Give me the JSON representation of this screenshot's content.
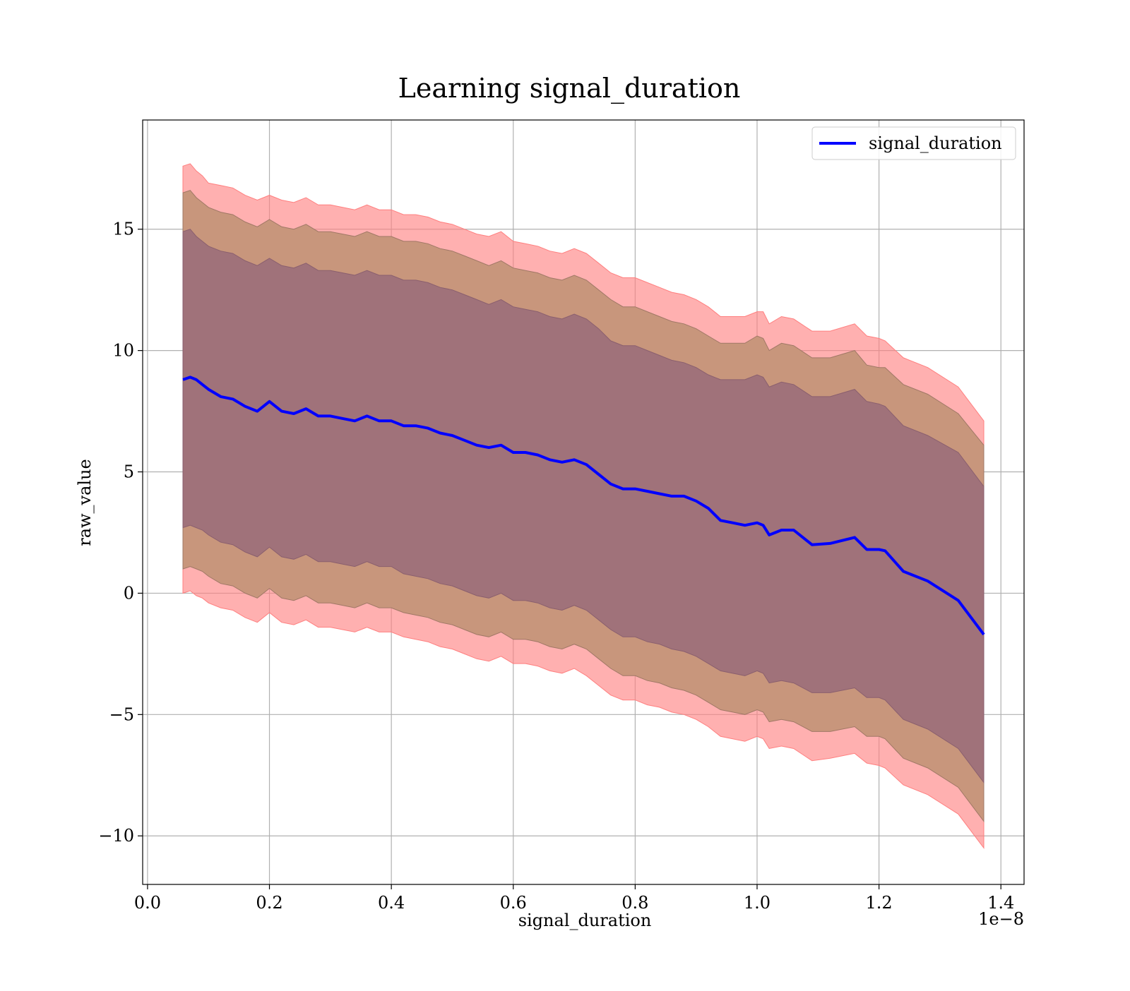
{
  "chart_data": {
    "type": "area",
    "title": "Learning signal_duration",
    "xlabel": "signal_duration",
    "ylabel": "raw_value",
    "x_offset_label": "1e−8",
    "xlim": [
      -0.008,
      1.438
    ],
    "ylim": [
      -12.0,
      19.5
    ],
    "x_tick_values": [
      0.0,
      0.2,
      0.4,
      0.6,
      0.8,
      1.0,
      1.2,
      1.4
    ],
    "x_tick_labels": [
      "0.0",
      "0.2",
      "0.4",
      "0.6",
      "0.8",
      "1.0",
      "1.2",
      "1.4"
    ],
    "y_tick_values": [
      -10,
      -5,
      0,
      5,
      10,
      15
    ],
    "y_tick_labels": [
      "−10",
      "−5",
      "0",
      "5",
      "10",
      "15"
    ],
    "grid": true,
    "legend_position": "top-right",
    "colors": {
      "line": "#0000ff",
      "band_outer": "#ff7f7f",
      "band_middle": "#c8967c",
      "band_inner": "#a0727a",
      "grid": "#b0b0b0"
    },
    "series": [
      {
        "name": "signal_duration",
        "x": [
          0.058,
          0.07,
          0.08,
          0.09,
          0.1,
          0.12,
          0.14,
          0.16,
          0.18,
          0.2,
          0.22,
          0.24,
          0.26,
          0.28,
          0.3,
          0.32,
          0.34,
          0.36,
          0.38,
          0.4,
          0.42,
          0.44,
          0.46,
          0.48,
          0.5,
          0.52,
          0.54,
          0.56,
          0.58,
          0.6,
          0.62,
          0.64,
          0.66,
          0.68,
          0.7,
          0.72,
          0.74,
          0.76,
          0.78,
          0.8,
          0.82,
          0.84,
          0.86,
          0.88,
          0.9,
          0.92,
          0.94,
          0.96,
          0.98,
          1.0,
          1.01,
          1.02,
          1.04,
          1.06,
          1.09,
          1.12,
          1.16,
          1.18,
          1.2,
          1.21,
          1.24,
          1.28,
          1.33,
          1.372
        ],
        "values": [
          8.8,
          8.9,
          8.8,
          8.6,
          8.4,
          8.1,
          8.0,
          7.7,
          7.5,
          7.9,
          7.5,
          7.4,
          7.6,
          7.3,
          7.3,
          7.2,
          7.1,
          7.3,
          7.1,
          7.1,
          6.9,
          6.9,
          6.8,
          6.6,
          6.5,
          6.3,
          6.1,
          6.0,
          6.1,
          5.8,
          5.8,
          5.7,
          5.5,
          5.4,
          5.5,
          5.3,
          4.9,
          4.5,
          4.3,
          4.3,
          4.2,
          4.1,
          4.0,
          4.0,
          3.8,
          3.5,
          3.0,
          2.9,
          2.8,
          2.9,
          2.8,
          2.4,
          2.6,
          2.6,
          2.0,
          2.05,
          2.3,
          1.8,
          1.8,
          1.75,
          0.9,
          0.5,
          -0.3,
          -1.7
        ],
        "band_inner_upper": [
          14.9,
          15.0,
          14.7,
          14.5,
          14.3,
          14.1,
          14.0,
          13.7,
          13.5,
          13.8,
          13.5,
          13.4,
          13.6,
          13.3,
          13.3,
          13.2,
          13.1,
          13.3,
          13.1,
          13.1,
          12.9,
          12.9,
          12.8,
          12.6,
          12.5,
          12.3,
          12.1,
          11.9,
          12.1,
          11.8,
          11.7,
          11.6,
          11.4,
          11.3,
          11.5,
          11.3,
          10.9,
          10.4,
          10.2,
          10.2,
          10.0,
          9.8,
          9.6,
          9.5,
          9.3,
          9.0,
          8.8,
          8.8,
          8.8,
          9.0,
          8.9,
          8.5,
          8.7,
          8.6,
          8.1,
          8.1,
          8.4,
          7.9,
          7.8,
          7.7,
          6.9,
          6.5,
          5.8,
          4.4
        ],
        "band_inner_lower": [
          2.7,
          2.8,
          2.7,
          2.6,
          2.4,
          2.1,
          2.0,
          1.7,
          1.5,
          1.9,
          1.5,
          1.4,
          1.6,
          1.3,
          1.3,
          1.2,
          1.1,
          1.3,
          1.1,
          1.1,
          0.8,
          0.7,
          0.6,
          0.4,
          0.3,
          0.1,
          -0.1,
          -0.2,
          0.0,
          -0.3,
          -0.3,
          -0.4,
          -0.6,
          -0.7,
          -0.5,
          -0.7,
          -1.1,
          -1.5,
          -1.8,
          -1.8,
          -2.0,
          -2.1,
          -2.3,
          -2.4,
          -2.6,
          -2.9,
          -3.2,
          -3.3,
          -3.4,
          -3.2,
          -3.3,
          -3.7,
          -3.6,
          -3.7,
          -4.1,
          -4.1,
          -3.9,
          -4.3,
          -4.3,
          -4.4,
          -5.2,
          -5.6,
          -6.4,
          -7.8
        ],
        "band_middle_upper": [
          16.5,
          16.6,
          16.3,
          16.1,
          15.9,
          15.7,
          15.6,
          15.3,
          15.1,
          15.4,
          15.1,
          15.0,
          15.2,
          14.9,
          14.9,
          14.8,
          14.7,
          14.9,
          14.7,
          14.7,
          14.5,
          14.5,
          14.4,
          14.2,
          14.1,
          13.9,
          13.7,
          13.5,
          13.7,
          13.4,
          13.3,
          13.2,
          13.0,
          12.9,
          13.1,
          12.9,
          12.5,
          12.1,
          11.8,
          11.8,
          11.6,
          11.4,
          11.2,
          11.1,
          10.9,
          10.6,
          10.3,
          10.3,
          10.3,
          10.6,
          10.5,
          10.0,
          10.3,
          10.2,
          9.7,
          9.7,
          10.0,
          9.4,
          9.3,
          9.3,
          8.6,
          8.2,
          7.4,
          6.1
        ],
        "band_middle_lower": [
          1.0,
          1.1,
          1.0,
          0.9,
          0.7,
          0.4,
          0.3,
          0.0,
          -0.2,
          0.2,
          -0.2,
          -0.3,
          -0.1,
          -0.4,
          -0.4,
          -0.5,
          -0.6,
          -0.4,
          -0.6,
          -0.6,
          -0.8,
          -0.9,
          -1.0,
          -1.2,
          -1.3,
          -1.5,
          -1.7,
          -1.8,
          -1.6,
          -1.9,
          -1.9,
          -2.0,
          -2.2,
          -2.3,
          -2.1,
          -2.3,
          -2.7,
          -3.1,
          -3.4,
          -3.4,
          -3.6,
          -3.7,
          -3.9,
          -4.0,
          -4.2,
          -4.5,
          -4.8,
          -4.9,
          -5.0,
          -4.8,
          -4.9,
          -5.3,
          -5.2,
          -5.3,
          -5.7,
          -5.7,
          -5.5,
          -5.9,
          -5.9,
          -6.0,
          -6.8,
          -7.2,
          -8.0,
          -9.4
        ],
        "band_outer_upper": [
          17.6,
          17.7,
          17.4,
          17.2,
          16.9,
          16.8,
          16.7,
          16.4,
          16.2,
          16.4,
          16.2,
          16.1,
          16.3,
          16.0,
          16.0,
          15.9,
          15.8,
          16.0,
          15.8,
          15.8,
          15.6,
          15.6,
          15.5,
          15.3,
          15.2,
          15.0,
          14.8,
          14.7,
          14.9,
          14.5,
          14.4,
          14.3,
          14.1,
          14.0,
          14.2,
          14.0,
          13.6,
          13.2,
          13.0,
          13.0,
          12.8,
          12.6,
          12.4,
          12.3,
          12.1,
          11.8,
          11.4,
          11.4,
          11.4,
          11.6,
          11.6,
          11.1,
          11.4,
          11.3,
          10.8,
          10.8,
          11.1,
          10.6,
          10.5,
          10.4,
          9.7,
          9.3,
          8.5,
          7.1
        ],
        "band_outer_lower": [
          0.0,
          0.1,
          -0.1,
          -0.2,
          -0.4,
          -0.6,
          -0.7,
          -1.0,
          -1.2,
          -0.8,
          -1.2,
          -1.3,
          -1.1,
          -1.4,
          -1.4,
          -1.5,
          -1.6,
          -1.4,
          -1.6,
          -1.6,
          -1.8,
          -1.9,
          -2.0,
          -2.2,
          -2.3,
          -2.5,
          -2.7,
          -2.8,
          -2.6,
          -2.9,
          -2.9,
          -3.0,
          -3.2,
          -3.3,
          -3.1,
          -3.4,
          -3.8,
          -4.2,
          -4.4,
          -4.4,
          -4.6,
          -4.7,
          -4.9,
          -5.0,
          -5.2,
          -5.5,
          -5.9,
          -6.0,
          -6.1,
          -5.9,
          -6.0,
          -6.4,
          -6.3,
          -6.4,
          -6.9,
          -6.8,
          -6.6,
          -7.0,
          -7.1,
          -7.2,
          -7.9,
          -8.3,
          -9.1,
          -10.5
        ]
      }
    ]
  }
}
